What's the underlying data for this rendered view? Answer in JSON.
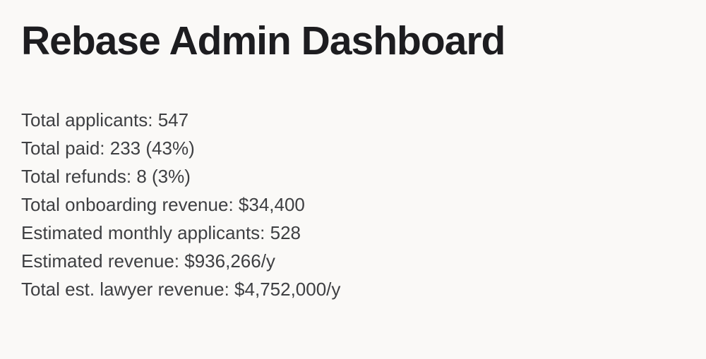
{
  "page": {
    "title": "Rebase Admin Dashboard",
    "background_color": "#faf9f7",
    "title_color": "#1d1d20",
    "text_color": "#3e3f42"
  },
  "stats": {
    "items": [
      {
        "label": "Total applicants:",
        "value": "547"
      },
      {
        "label": "Total paid:",
        "value": "233 (43%)"
      },
      {
        "label": "Total refunds:",
        "value": "8 (3%)"
      },
      {
        "label": "Total onboarding revenue:",
        "value": "$34,400"
      },
      {
        "label": "Estimated monthly applicants:",
        "value": "528"
      },
      {
        "label": "Estimated revenue:",
        "value": "$936,266/y"
      },
      {
        "label": "Total est. lawyer revenue:",
        "value": "$4,752,000/y"
      }
    ]
  }
}
